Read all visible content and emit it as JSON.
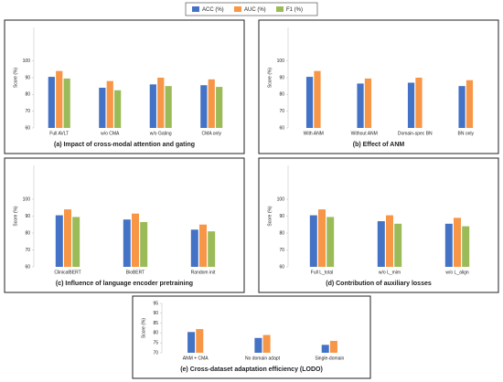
{
  "chart_data": [
    {
      "type": "bar",
      "title": "(a) Impact of cross-modal attention and gating",
      "ylabel": "Score (%)",
      "categories": [
        "Full AVLT",
        "w/o CMA",
        "w/o Gating",
        "CMA only"
      ],
      "series": [
        {
          "name": "ACC (%)",
          "color": "#4472c4",
          "values": [
            90.5,
            84,
            86,
            85.5
          ]
        },
        {
          "name": "AUC (%)",
          "color": "#f79646",
          "values": [
            94,
            88,
            90,
            89
          ]
        },
        {
          "name": "F1 (%)",
          "color": "#9bbb59",
          "values": [
            89.5,
            82.5,
            85,
            84.5
          ]
        }
      ],
      "ylim": [
        60,
        120
      ],
      "yticks": [
        60,
        70,
        80,
        90,
        100
      ]
    },
    {
      "type": "bar",
      "title": "(b) Effect of ANM",
      "ylabel": "Score (%)",
      "categories": [
        "With ANM",
        "Without ANM",
        "Domain-spec BN",
        "BN only"
      ],
      "series": [
        {
          "name": "ACC (%)",
          "color": "#4472c4",
          "values": [
            90.5,
            86.5,
            87,
            85
          ]
        },
        {
          "name": "AUC (%)",
          "color": "#f79646",
          "values": [
            94,
            89.5,
            90,
            88.5
          ]
        }
      ],
      "ylim": [
        60,
        120
      ],
      "yticks": [
        60,
        70,
        80,
        90,
        100
      ]
    },
    {
      "type": "bar",
      "title": "(c) Influence of language encoder pretraining",
      "ylabel": "Score (%)",
      "categories": [
        "ClinicalBERT",
        "BioBERT",
        "Random init"
      ],
      "series": [
        {
          "name": "ACC (%)",
          "color": "#4472c4",
          "values": [
            90.5,
            88,
            82
          ]
        },
        {
          "name": "AUC (%)",
          "color": "#f79646",
          "values": [
            94,
            91.5,
            85
          ]
        },
        {
          "name": "F1 (%)",
          "color": "#9bbb59",
          "values": [
            89.5,
            86.5,
            81
          ]
        }
      ],
      "ylim": [
        60,
        120
      ],
      "yticks": [
        60,
        70,
        80,
        90,
        100
      ]
    },
    {
      "type": "bar",
      "title": "(d) Contribution of auxiliary losses",
      "ylabel": "Score (%)",
      "categories": [
        "Full L_total",
        "w/o L_mim",
        "w/o L_align"
      ],
      "series": [
        {
          "name": "ACC (%)",
          "color": "#4472c4",
          "values": [
            90.5,
            87,
            85.5
          ]
        },
        {
          "name": "AUC (%)",
          "color": "#f79646",
          "values": [
            94,
            90.5,
            89
          ]
        },
        {
          "name": "F1 (%)",
          "color": "#9bbb59",
          "values": [
            89.5,
            85.5,
            84
          ]
        }
      ],
      "ylim": [
        60,
        120
      ],
      "yticks": [
        60,
        70,
        80,
        90,
        100
      ]
    },
    {
      "type": "bar",
      "title": "(e) Cross-dataset adaptation efficiency (LODO)",
      "ylabel": "Score (%)",
      "categories": [
        "ANM + CMA",
        "No domain adapt",
        "Single-domain"
      ],
      "series": [
        {
          "name": "ACC (%)",
          "color": "#4472c4",
          "values": [
            80.5,
            77.5,
            74
          ]
        },
        {
          "name": "AUC (%)",
          "color": "#f79646",
          "values": [
            82,
            79,
            76
          ]
        }
      ],
      "ylim": [
        70,
        95
      ],
      "yticks": [
        70,
        75,
        80,
        85,
        90,
        95
      ]
    }
  ]
}
